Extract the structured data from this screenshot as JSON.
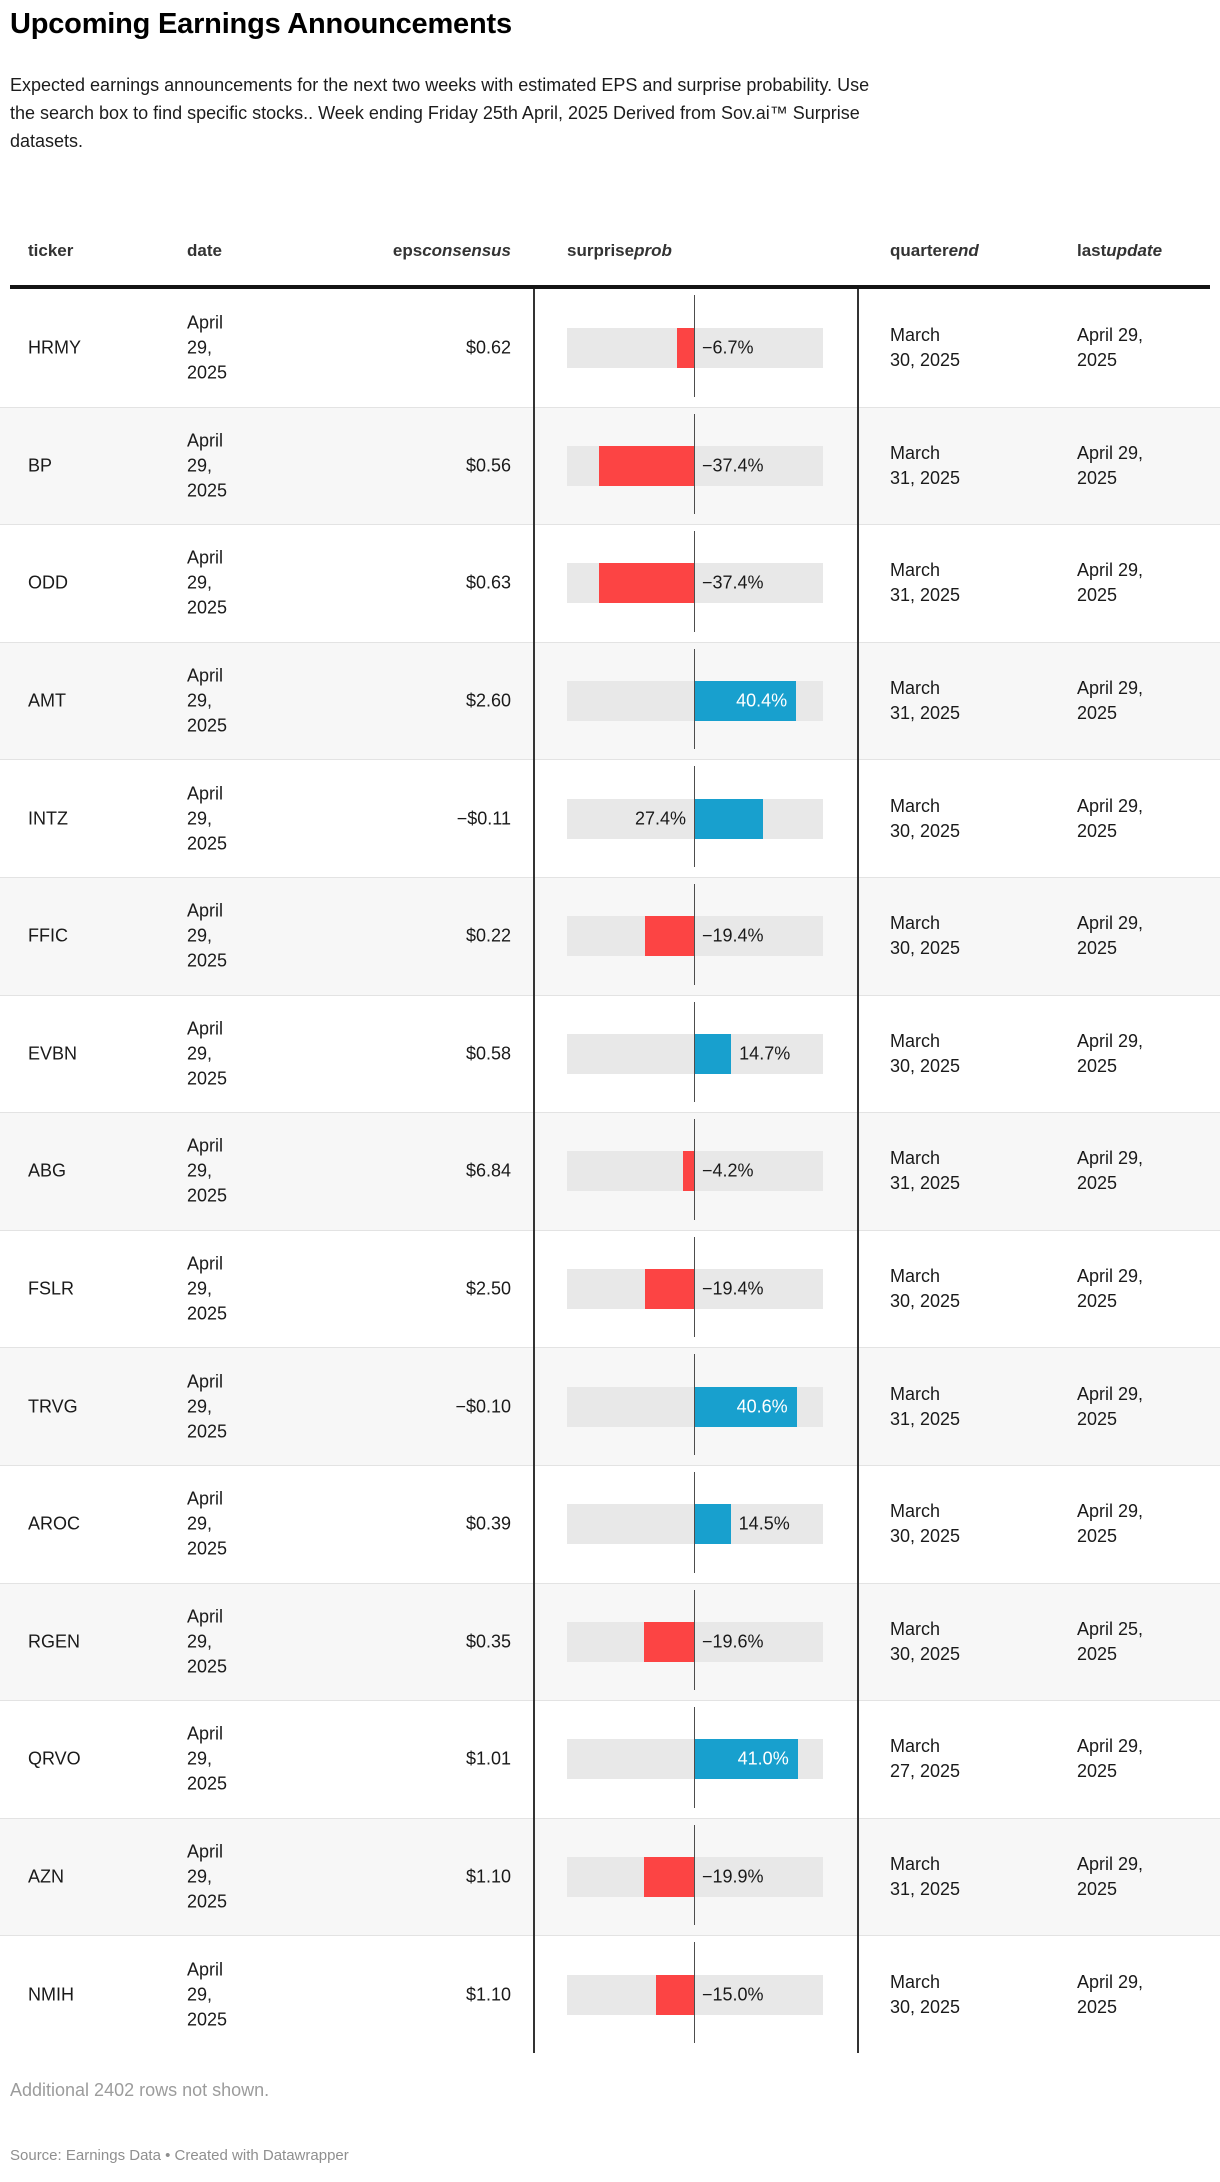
{
  "chart_data": {
    "type": "table",
    "title": "Upcoming Earnings Announcements",
    "description": "Expected earnings announcements for the next two weeks with estimated EPS and surprise probability. Use the search box to find specific stocks.. Week ending Friday 25th April, 2025 Derived from Sov.ai™ Surprise datasets.",
    "columns": [
      {
        "id": "ticker",
        "label_normal": "ticker",
        "label_italic": ""
      },
      {
        "id": "date",
        "label_normal": "date",
        "label_italic": ""
      },
      {
        "id": "epsconsensus",
        "label_normal": "eps",
        "label_italic": "consensus"
      },
      {
        "id": "surpriseprob",
        "label_normal": "surprise",
        "label_italic": "prob"
      },
      {
        "id": "quarterend",
        "label_normal": "quarter",
        "label_italic": "end"
      },
      {
        "id": "lastupdate",
        "label_normal": "last",
        "label_italic": "update"
      }
    ],
    "rows": [
      {
        "ticker": "HRMY",
        "date": "April 29, 2025",
        "eps_consensus": "$0.62",
        "surprise_prob_pct": -6.7,
        "surprise_prob_label": "−6.7%",
        "quarter_end": "March 30, 2025",
        "last_update": "April 29, 2025"
      },
      {
        "ticker": "BP",
        "date": "April 29, 2025",
        "eps_consensus": "$0.56",
        "surprise_prob_pct": -37.4,
        "surprise_prob_label": "−37.4%",
        "quarter_end": "March 31, 2025",
        "last_update": "April 29, 2025"
      },
      {
        "ticker": "ODD",
        "date": "April 29, 2025",
        "eps_consensus": "$0.63",
        "surprise_prob_pct": -37.4,
        "surprise_prob_label": "−37.4%",
        "quarter_end": "March 31, 2025",
        "last_update": "April 29, 2025"
      },
      {
        "ticker": "AMT",
        "date": "April 29, 2025",
        "eps_consensus": "$2.60",
        "surprise_prob_pct": 40.4,
        "surprise_prob_label": "40.4%",
        "quarter_end": "March 31, 2025",
        "last_update": "April 29, 2025"
      },
      {
        "ticker": "INTZ",
        "date": "April 29, 2025",
        "eps_consensus": "−$0.11",
        "surprise_prob_pct": 27.4,
        "surprise_prob_label": "27.4%",
        "quarter_end": "March 30, 2025",
        "last_update": "April 29, 2025"
      },
      {
        "ticker": "FFIC",
        "date": "April 29, 2025",
        "eps_consensus": "$0.22",
        "surprise_prob_pct": -19.4,
        "surprise_prob_label": "−19.4%",
        "quarter_end": "March 30, 2025",
        "last_update": "April 29, 2025"
      },
      {
        "ticker": "EVBN",
        "date": "April 29, 2025",
        "eps_consensus": "$0.58",
        "surprise_prob_pct": 14.7,
        "surprise_prob_label": "14.7%",
        "quarter_end": "March 30, 2025",
        "last_update": "April 29, 2025"
      },
      {
        "ticker": "ABG",
        "date": "April 29, 2025",
        "eps_consensus": "$6.84",
        "surprise_prob_pct": -4.2,
        "surprise_prob_label": "−4.2%",
        "quarter_end": "March 31, 2025",
        "last_update": "April 29, 2025"
      },
      {
        "ticker": "FSLR",
        "date": "April 29, 2025",
        "eps_consensus": "$2.50",
        "surprise_prob_pct": -19.4,
        "surprise_prob_label": "−19.4%",
        "quarter_end": "March 30, 2025",
        "last_update": "April 29, 2025"
      },
      {
        "ticker": "TRVG",
        "date": "April 29, 2025",
        "eps_consensus": "−$0.10",
        "surprise_prob_pct": 40.6,
        "surprise_prob_label": "40.6%",
        "quarter_end": "March 31, 2025",
        "last_update": "April 29, 2025"
      },
      {
        "ticker": "AROC",
        "date": "April 29, 2025",
        "eps_consensus": "$0.39",
        "surprise_prob_pct": 14.5,
        "surprise_prob_label": "14.5%",
        "quarter_end": "March 30, 2025",
        "last_update": "April 29, 2025"
      },
      {
        "ticker": "RGEN",
        "date": "April 29, 2025",
        "eps_consensus": "$0.35",
        "surprise_prob_pct": -19.6,
        "surprise_prob_label": "−19.6%",
        "quarter_end": "March 30, 2025",
        "last_update": "April 25, 2025"
      },
      {
        "ticker": "QRVO",
        "date": "April 29, 2025",
        "eps_consensus": "$1.01",
        "surprise_prob_pct": 41.0,
        "surprise_prob_label": "41.0%",
        "quarter_end": "March 27, 2025",
        "last_update": "April 29, 2025"
      },
      {
        "ticker": "AZN",
        "date": "April 29, 2025",
        "eps_consensus": "$1.10",
        "surprise_prob_pct": -19.9,
        "surprise_prob_label": "−19.9%",
        "quarter_end": "March 31, 2025",
        "last_update": "April 29, 2025"
      },
      {
        "ticker": "NMIH",
        "date": "April 29, 2025",
        "eps_consensus": "$1.10",
        "surprise_prob_pct": -15.0,
        "surprise_prob_label": "−15.0%",
        "quarter_end": "March 30, 2025",
        "last_update": "April 29, 2025"
      }
    ],
    "bar_axis": {
      "min": -51,
      "max": 51,
      "zero_line": true
    },
    "colors": {
      "positive_bar": "#18a0ce",
      "negative_bar": "#fc4444",
      "bar_track": "#e8e8e8"
    },
    "footnote": "Additional 2402 rows not shown.",
    "source": "Source: Earnings Data • Created with Datawrapper"
  }
}
